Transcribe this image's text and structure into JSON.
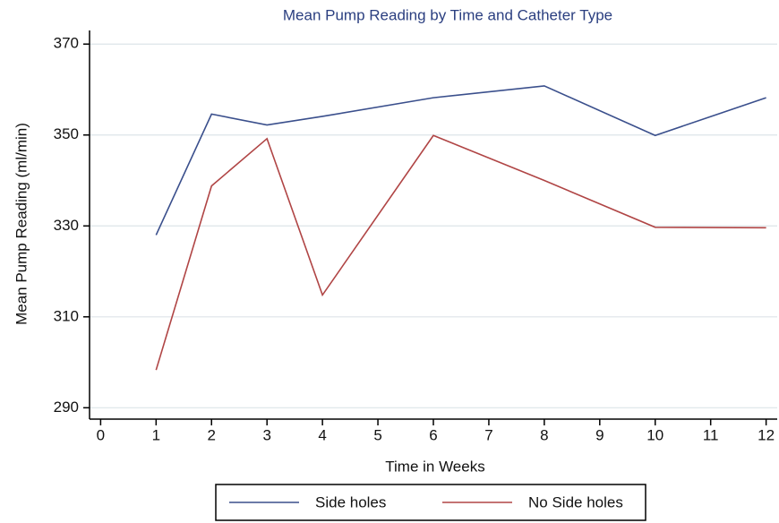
{
  "chart_data": {
    "type": "line",
    "title": "Mean Pump Reading by Time and Catheter Type",
    "x_label": "Time in Weeks",
    "y_label": "Mean Pump Reading (ml/min)",
    "x": [
      1,
      2,
      3,
      4,
      6,
      8,
      10,
      12
    ],
    "series": [
      {
        "name": "Side holes",
        "color": "#3a4f8c",
        "values": [
          328,
          354.6,
          352.2,
          354.1,
          358.2,
          360.8,
          349.9,
          358.2
        ]
      },
      {
        "name": "No Side holes",
        "color": "#b04545",
        "values": [
          298.3,
          338.8,
          349.2,
          314.8,
          349.9,
          340,
          329.7,
          329.6
        ]
      }
    ],
    "xlim": [
      -0.2,
      12.2
    ],
    "xticks": [
      0,
      1,
      2,
      3,
      4,
      5,
      6,
      7,
      8,
      9,
      10,
      11,
      12
    ],
    "ylim": [
      287.5,
      373
    ],
    "yticks": [
      290,
      310,
      330,
      350,
      370
    ],
    "grid": true,
    "legend": "bottom"
  }
}
